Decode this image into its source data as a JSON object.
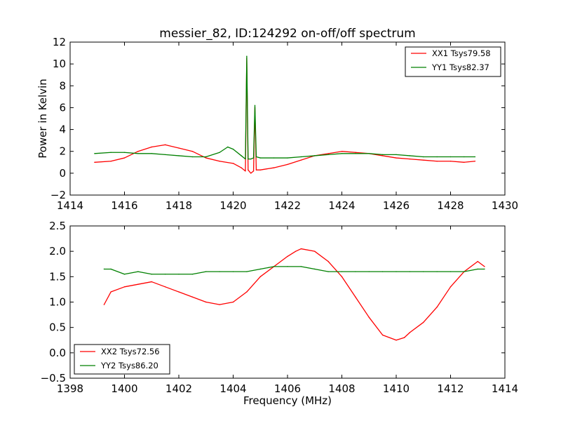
{
  "chart_data": [
    {
      "type": "line",
      "title": "messier_82, ID:124292 on-off/off spectrum",
      "xlabel": "",
      "ylabel": "Power in Kelvin",
      "xlim": [
        1414,
        1430
      ],
      "ylim": [
        -2,
        12
      ],
      "xticks": [
        "1414",
        "1416",
        "1418",
        "1420",
        "1422",
        "1424",
        "1426",
        "1428",
        "1430"
      ],
      "yticks": [
        "−2",
        "0",
        "2",
        "4",
        "6",
        "8",
        "10",
        "12"
      ],
      "grid": false,
      "legend_position": "top-right",
      "series": [
        {
          "name": "XX1 Tsys79.58",
          "color": "#ff0000",
          "x": [
            1414.9,
            1415.5,
            1416.0,
            1416.5,
            1417.0,
            1417.5,
            1418.0,
            1418.5,
            1419.0,
            1419.5,
            1420.0,
            1420.3,
            1420.45,
            1420.5,
            1420.55,
            1420.65,
            1420.75,
            1420.8,
            1420.85,
            1421.0,
            1421.5,
            1422.0,
            1422.5,
            1423.0,
            1423.5,
            1424.0,
            1424.5,
            1425.0,
            1425.5,
            1426.0,
            1426.5,
            1427.0,
            1427.5,
            1428.0,
            1428.5,
            1428.9
          ],
          "y": [
            1.0,
            1.1,
            1.4,
            2.0,
            2.4,
            2.6,
            2.3,
            2.0,
            1.4,
            1.1,
            0.9,
            0.5,
            0.2,
            10.5,
            0.3,
            0.0,
            0.2,
            6.0,
            0.3,
            0.3,
            0.5,
            0.8,
            1.2,
            1.6,
            1.8,
            2.0,
            1.9,
            1.8,
            1.6,
            1.4,
            1.3,
            1.2,
            1.1,
            1.1,
            1.0,
            1.1
          ]
        },
        {
          "name": "YY1 Tsys82.37",
          "color": "#008000",
          "x": [
            1414.9,
            1415.5,
            1416.0,
            1416.5,
            1417.0,
            1417.5,
            1418.0,
            1418.5,
            1419.0,
            1419.5,
            1419.8,
            1420.0,
            1420.3,
            1420.45,
            1420.5,
            1420.55,
            1420.65,
            1420.75,
            1420.8,
            1420.85,
            1421.0,
            1421.5,
            1422.0,
            1422.5,
            1423.0,
            1423.5,
            1424.0,
            1424.5,
            1425.0,
            1425.5,
            1426.0,
            1426.5,
            1427.0,
            1427.5,
            1428.0,
            1428.5,
            1428.9
          ],
          "y": [
            1.8,
            1.9,
            1.9,
            1.8,
            1.8,
            1.7,
            1.6,
            1.5,
            1.5,
            1.9,
            2.4,
            2.2,
            1.6,
            1.3,
            10.7,
            1.3,
            1.3,
            1.4,
            6.2,
            1.5,
            1.4,
            1.4,
            1.4,
            1.5,
            1.6,
            1.7,
            1.8,
            1.8,
            1.8,
            1.7,
            1.7,
            1.6,
            1.5,
            1.5,
            1.5,
            1.5,
            1.5
          ]
        }
      ]
    },
    {
      "type": "line",
      "title": "",
      "xlabel": "Frequency (MHz)",
      "ylabel": "",
      "xlim": [
        1398,
        1414
      ],
      "ylim": [
        -0.5,
        2.5
      ],
      "xticks": [
        "1398",
        "1400",
        "1402",
        "1404",
        "1406",
        "1408",
        "1410",
        "1412",
        "1414"
      ],
      "yticks": [
        "−0.5",
        "0.0",
        "0.5",
        "1.0",
        "1.5",
        "2.0",
        "2.5"
      ],
      "grid": false,
      "legend_position": "bottom-left",
      "series": [
        {
          "name": "XX2 Tsys72.56",
          "color": "#ff0000",
          "x": [
            1399.25,
            1399.5,
            1400.0,
            1400.5,
            1401.0,
            1401.5,
            1402.0,
            1402.5,
            1403.0,
            1403.5,
            1404.0,
            1404.5,
            1405.0,
            1405.5,
            1406.0,
            1406.3,
            1406.5,
            1407.0,
            1407.5,
            1408.0,
            1408.5,
            1409.0,
            1409.5,
            1410.0,
            1410.3,
            1410.5,
            1411.0,
            1411.5,
            1412.0,
            1412.5,
            1413.0,
            1413.25
          ],
          "y": [
            0.95,
            1.2,
            1.3,
            1.35,
            1.4,
            1.3,
            1.2,
            1.1,
            1.0,
            0.95,
            1.0,
            1.2,
            1.5,
            1.7,
            1.9,
            2.0,
            2.05,
            2.0,
            1.8,
            1.5,
            1.1,
            0.7,
            0.35,
            0.25,
            0.3,
            0.4,
            0.6,
            0.9,
            1.3,
            1.6,
            1.8,
            1.7
          ]
        },
        {
          "name": "YY2 Tsys86.20",
          "color": "#008000",
          "x": [
            1399.25,
            1399.5,
            1400.0,
            1400.5,
            1401.0,
            1401.5,
            1402.0,
            1402.5,
            1403.0,
            1403.5,
            1404.0,
            1404.5,
            1405.0,
            1405.5,
            1406.0,
            1406.5,
            1407.0,
            1407.5,
            1408.0,
            1408.5,
            1409.0,
            1409.5,
            1410.0,
            1410.5,
            1411.0,
            1411.5,
            1412.0,
            1412.5,
            1413.0,
            1413.25
          ],
          "y": [
            1.65,
            1.65,
            1.55,
            1.6,
            1.55,
            1.55,
            1.55,
            1.55,
            1.6,
            1.6,
            1.6,
            1.6,
            1.65,
            1.7,
            1.7,
            1.7,
            1.65,
            1.6,
            1.6,
            1.6,
            1.6,
            1.6,
            1.6,
            1.6,
            1.6,
            1.6,
            1.6,
            1.6,
            1.65,
            1.65
          ]
        }
      ]
    }
  ]
}
